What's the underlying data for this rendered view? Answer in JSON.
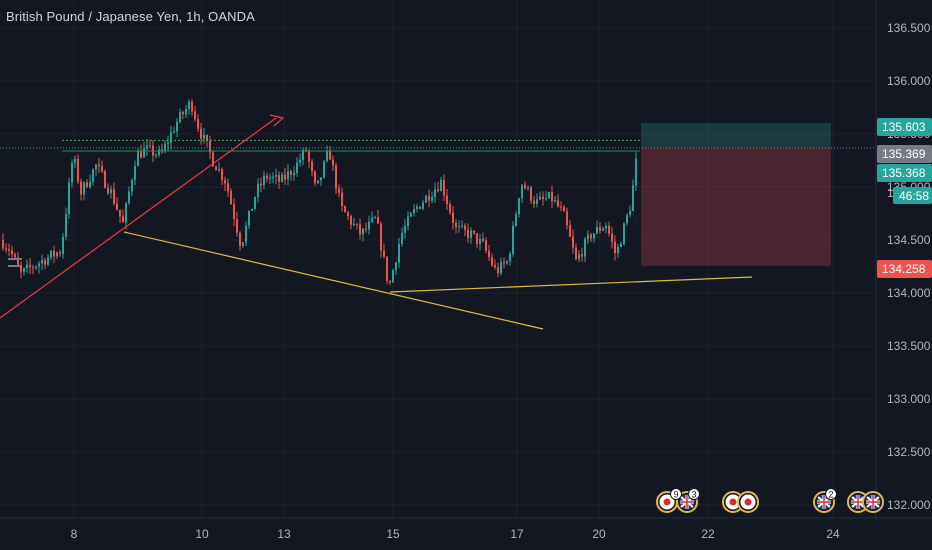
{
  "header": {
    "title": "British Pound / Japanese Yen, 1h, OANDA"
  },
  "chart_data": {
    "type": "candlestick",
    "symbol": "British Pound / Japanese Yen",
    "interval": "1h",
    "source": "OANDA",
    "y_ticks": [
      132.0,
      132.5,
      133.0,
      133.5,
      134.0,
      134.5,
      135.0,
      135.5,
      136.0,
      136.5
    ],
    "y_tick_labels": [
      "132.000",
      "132.500",
      "133.000",
      "133.500",
      "134.000",
      "134.500",
      "135.000",
      "135.500",
      "136.000",
      "136.500"
    ],
    "ylim": [
      131.93,
      136.93
    ],
    "x_tick_labels": [
      "8",
      "10",
      "13",
      "15",
      "17",
      "20",
      "22",
      "24"
    ],
    "current_price": 135.369,
    "price_labels": [
      {
        "value": 135.603,
        "text": "135.603",
        "color": "#26a69a"
      },
      {
        "value": 135.369,
        "text": "135.369",
        "color": "#787b86"
      },
      {
        "value": 135.368,
        "text": "135.368",
        "color": "#26a69a"
      },
      {
        "value": 134.258,
        "text": "134.258",
        "color": "#ef5350"
      }
    ],
    "countdown": "46:58",
    "partial_label": "13",
    "position": {
      "type": "short",
      "entry": 135.38,
      "stop": 135.603,
      "target": 134.258
    },
    "event_badges": [
      {
        "count": "9"
      },
      {
        "count": "3"
      },
      {
        "count": "2"
      }
    ],
    "colors": {
      "background": "#131722",
      "up": "#26a69a",
      "down": "#ef5350",
      "axis_text": "#b2b5be",
      "current_line": "#26a69a",
      "resistance_line": "#26a69a",
      "trend_up": "#f23645",
      "support_lines": "#e0b84a",
      "stop_zone": "#26a69a",
      "target_zone": "#b2404a"
    }
  }
}
